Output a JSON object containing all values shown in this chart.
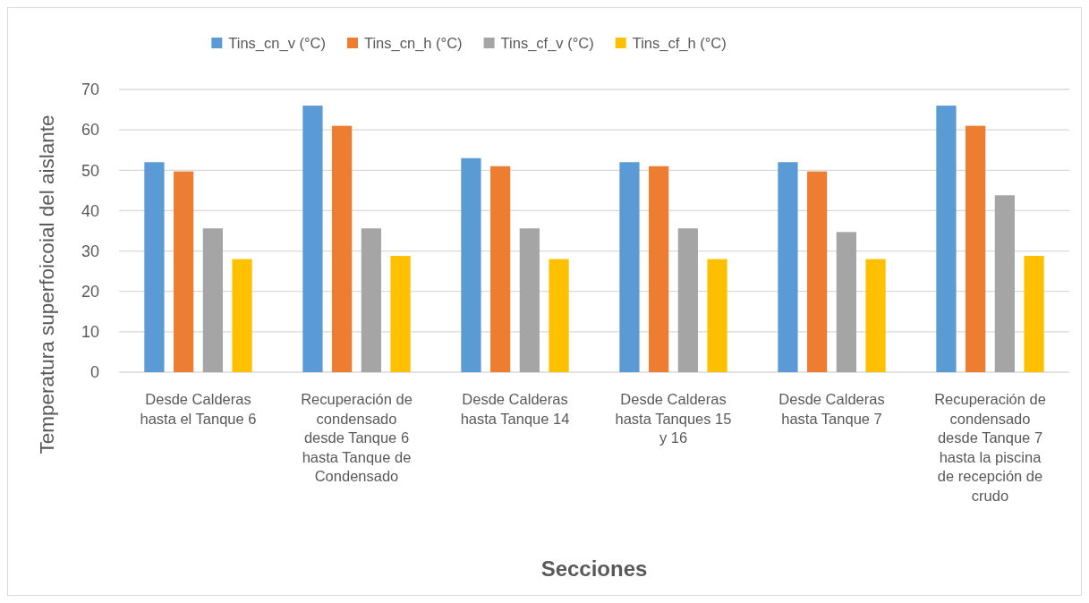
{
  "chart_data": {
    "type": "bar",
    "xlabel": "Secciones",
    "ylabel": "Temperatura superfoicoial del aislante",
    "categories": [
      "Desde Calderas hasta el Tanque 6",
      "Recuperación de condensado desde Tanque 6 hasta Tanque de Condensado",
      "Desde Calderas hasta Tanque 14",
      "Desde Calderas hasta Tanques 15 y 16",
      "Desde Calderas hasta Tanque 7",
      "Recuperación de condensado desde Tanque 7 hasta la piscina de recepción de crudo"
    ],
    "series": [
      {
        "name": "Tins_cn_v (°C)",
        "color": "#5b9bd5",
        "values": [
          52,
          66,
          53,
          52,
          52,
          66
        ]
      },
      {
        "name": "Tins_cn_h (°C)",
        "color": "#ed7d31",
        "values": [
          49.7,
          61,
          51,
          51,
          49.7,
          61
        ]
      },
      {
        "name": "Tins_cf_v (°C)",
        "color": "#a5a5a5",
        "values": [
          35.6,
          35.6,
          35.6,
          35.6,
          34.7,
          43.8
        ]
      },
      {
        "name": "Tins_cf_h (°C)",
        "color": "#ffc000",
        "values": [
          28,
          28.8,
          28,
          28,
          28,
          28.8
        ]
      }
    ],
    "ylim": [
      0,
      70
    ],
    "yticks": [
      0,
      10,
      20,
      30,
      40,
      50,
      60,
      70
    ],
    "grid": "y",
    "legend": "top"
  }
}
